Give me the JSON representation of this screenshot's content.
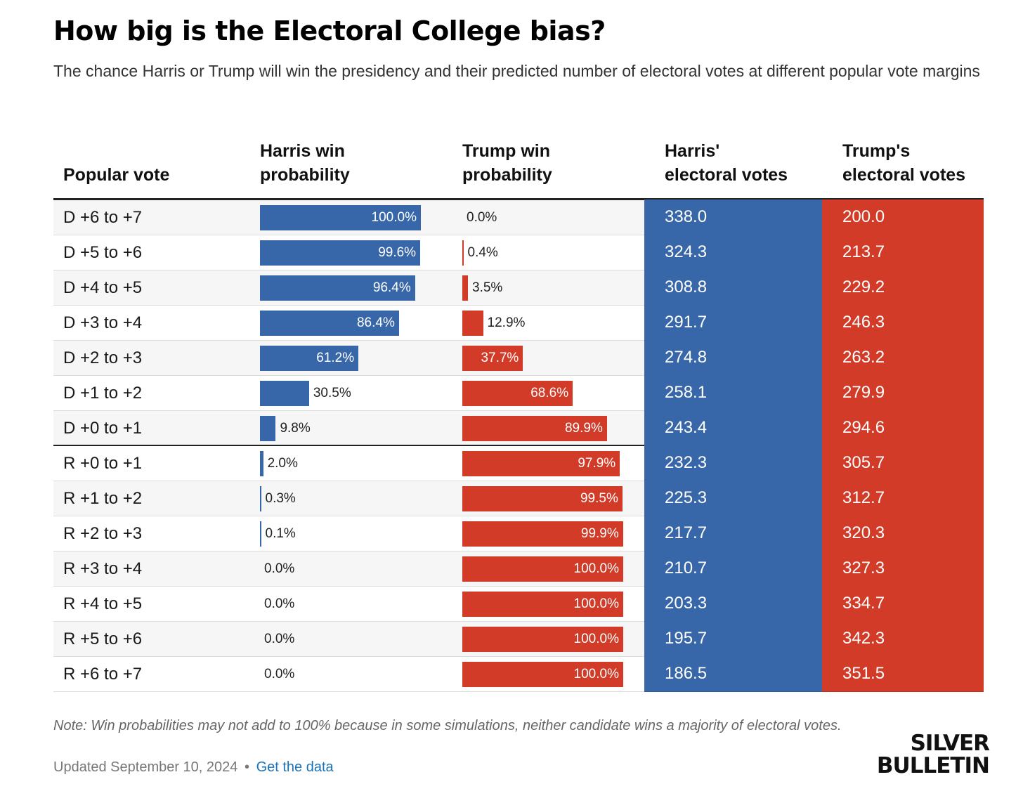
{
  "title": "How big is the Electoral College bias?",
  "subtitle": "The chance Harris or Trump will win the presidency and their predicted number of electoral votes at different popular vote margins",
  "colors": {
    "harris": "#3767a9",
    "trump": "#d13b27"
  },
  "headers": {
    "popular_vote": "Popular vote",
    "harris_prob": [
      "Harris win",
      "probability"
    ],
    "trump_prob": [
      "Trump win",
      "probability"
    ],
    "harris_ev": [
      "Harris'",
      "electoral votes"
    ],
    "trump_ev": [
      "Trump's",
      "electoral votes"
    ]
  },
  "chart_data": {
    "type": "table",
    "title": "How big is the Electoral College bias?",
    "columns": [
      "Popular vote",
      "Harris win probability",
      "Trump win probability",
      "Harris' electoral votes",
      "Trump's electoral votes"
    ],
    "rows": [
      {
        "popular_vote": "D +6 to +7",
        "harris_prob": 100.0,
        "trump_prob": 0.0,
        "harris_ev": "338.0",
        "trump_ev": "200.0"
      },
      {
        "popular_vote": "D +5 to +6",
        "harris_prob": 99.6,
        "trump_prob": 0.4,
        "harris_ev": "324.3",
        "trump_ev": "213.7"
      },
      {
        "popular_vote": "D +4 to +5",
        "harris_prob": 96.4,
        "trump_prob": 3.5,
        "harris_ev": "308.8",
        "trump_ev": "229.2"
      },
      {
        "popular_vote": "D +3 to +4",
        "harris_prob": 86.4,
        "trump_prob": 12.9,
        "harris_ev": "291.7",
        "trump_ev": "246.3"
      },
      {
        "popular_vote": "D +2 to +3",
        "harris_prob": 61.2,
        "trump_prob": 37.7,
        "harris_ev": "274.8",
        "trump_ev": "263.2"
      },
      {
        "popular_vote": "D +1 to +2",
        "harris_prob": 30.5,
        "trump_prob": 68.6,
        "harris_ev": "258.1",
        "trump_ev": "279.9"
      },
      {
        "popular_vote": "D +0 to +1",
        "harris_prob": 9.8,
        "trump_prob": 89.9,
        "harris_ev": "243.4",
        "trump_ev": "294.6"
      },
      {
        "popular_vote": "R +0 to +1",
        "harris_prob": 2.0,
        "trump_prob": 97.9,
        "harris_ev": "232.3",
        "trump_ev": "305.7"
      },
      {
        "popular_vote": "R +1 to +2",
        "harris_prob": 0.3,
        "trump_prob": 99.5,
        "harris_ev": "225.3",
        "trump_ev": "312.7"
      },
      {
        "popular_vote": "R +2 to +3",
        "harris_prob": 0.1,
        "trump_prob": 99.9,
        "harris_ev": "217.7",
        "trump_ev": "320.3"
      },
      {
        "popular_vote": "R +3 to +4",
        "harris_prob": 0.0,
        "trump_prob": 100.0,
        "harris_ev": "210.7",
        "trump_ev": "327.3"
      },
      {
        "popular_vote": "R +4 to +5",
        "harris_prob": 0.0,
        "trump_prob": 100.0,
        "harris_ev": "203.3",
        "trump_ev": "334.7"
      },
      {
        "popular_vote": "R +5 to +6",
        "harris_prob": 0.0,
        "trump_prob": 100.0,
        "harris_ev": "195.7",
        "trump_ev": "342.3"
      },
      {
        "popular_vote": "R +6 to +7",
        "harris_prob": 0.0,
        "trump_prob": 100.0,
        "harris_ev": "186.5",
        "trump_ev": "351.5"
      }
    ]
  },
  "note": "Note: Win probabilities may not add to 100% because in some simulations, neither candidate wins a majority of electoral votes.",
  "updated": "Updated September 10, 2024",
  "separator": "•",
  "get_data": "Get the data",
  "logo": [
    "SILVER",
    "BULLETIN"
  ]
}
